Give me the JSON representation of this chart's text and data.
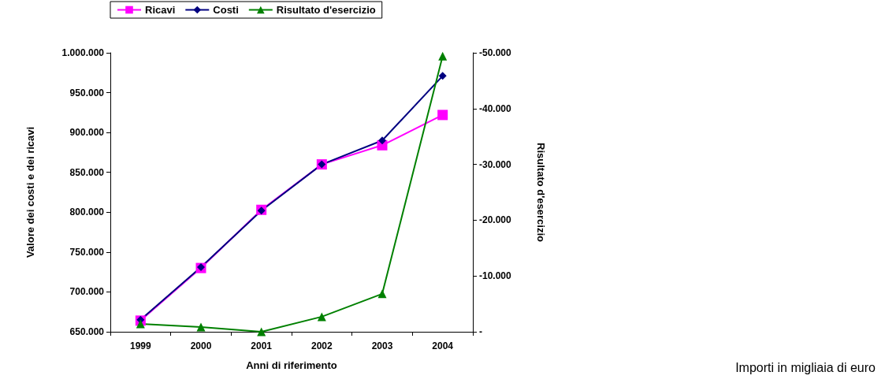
{
  "chart_data": {
    "type": "line",
    "categories": [
      "1999",
      "2000",
      "2001",
      "2002",
      "2003",
      "2004"
    ],
    "xlabel": "Anni di riferimento",
    "ylabel": "Valore dei costi e dei ricavi",
    "y2label": "Risultato d'esercizio",
    "series": [
      {
        "name": "Ricavi",
        "color": "#ff00ff",
        "marker": "square",
        "values": [
          664000,
          730000,
          803000,
          860000,
          884000,
          922000
        ]
      },
      {
        "name": "Costi",
        "color": "#000080",
        "marker": "diamond",
        "values": [
          665000,
          731000,
          802000,
          860000,
          890000,
          971000
        ]
      },
      {
        "name": "Risultato d'esercizio",
        "color": "#008000",
        "marker": "triangle",
        "axis": "y2",
        "values": [
          -1400,
          -850,
          0,
          -2700,
          -6800,
          -49400
        ]
      }
    ],
    "ylim": [
      650000,
      1000000
    ],
    "yticks": [
      {
        "value": 650000,
        "label": "650.000"
      },
      {
        "value": 700000,
        "label": "700.000"
      },
      {
        "value": 750000,
        "label": "750.000"
      },
      {
        "value": 800000,
        "label": "800.000"
      },
      {
        "value": 850000,
        "label": "850.000"
      },
      {
        "value": 900000,
        "label": "900.000"
      },
      {
        "value": 950000,
        "label": "950.000"
      },
      {
        "value": 1000000,
        "label": "1.000.000"
      }
    ],
    "y2lim": [
      0,
      -50000
    ],
    "y2ticks": [
      {
        "value": 0,
        "label": "-"
      },
      {
        "value": -10000,
        "label": "-10.000"
      },
      {
        "value": -20000,
        "label": "-20.000"
      },
      {
        "value": -30000,
        "label": "-30.000"
      },
      {
        "value": -40000,
        "label": "-40.000"
      },
      {
        "value": -50000,
        "label": "-50.000"
      }
    ],
    "annotations": [
      "Importi in migliaia di euro"
    ],
    "legend": "top",
    "grid": false,
    "line_style": "solid"
  }
}
